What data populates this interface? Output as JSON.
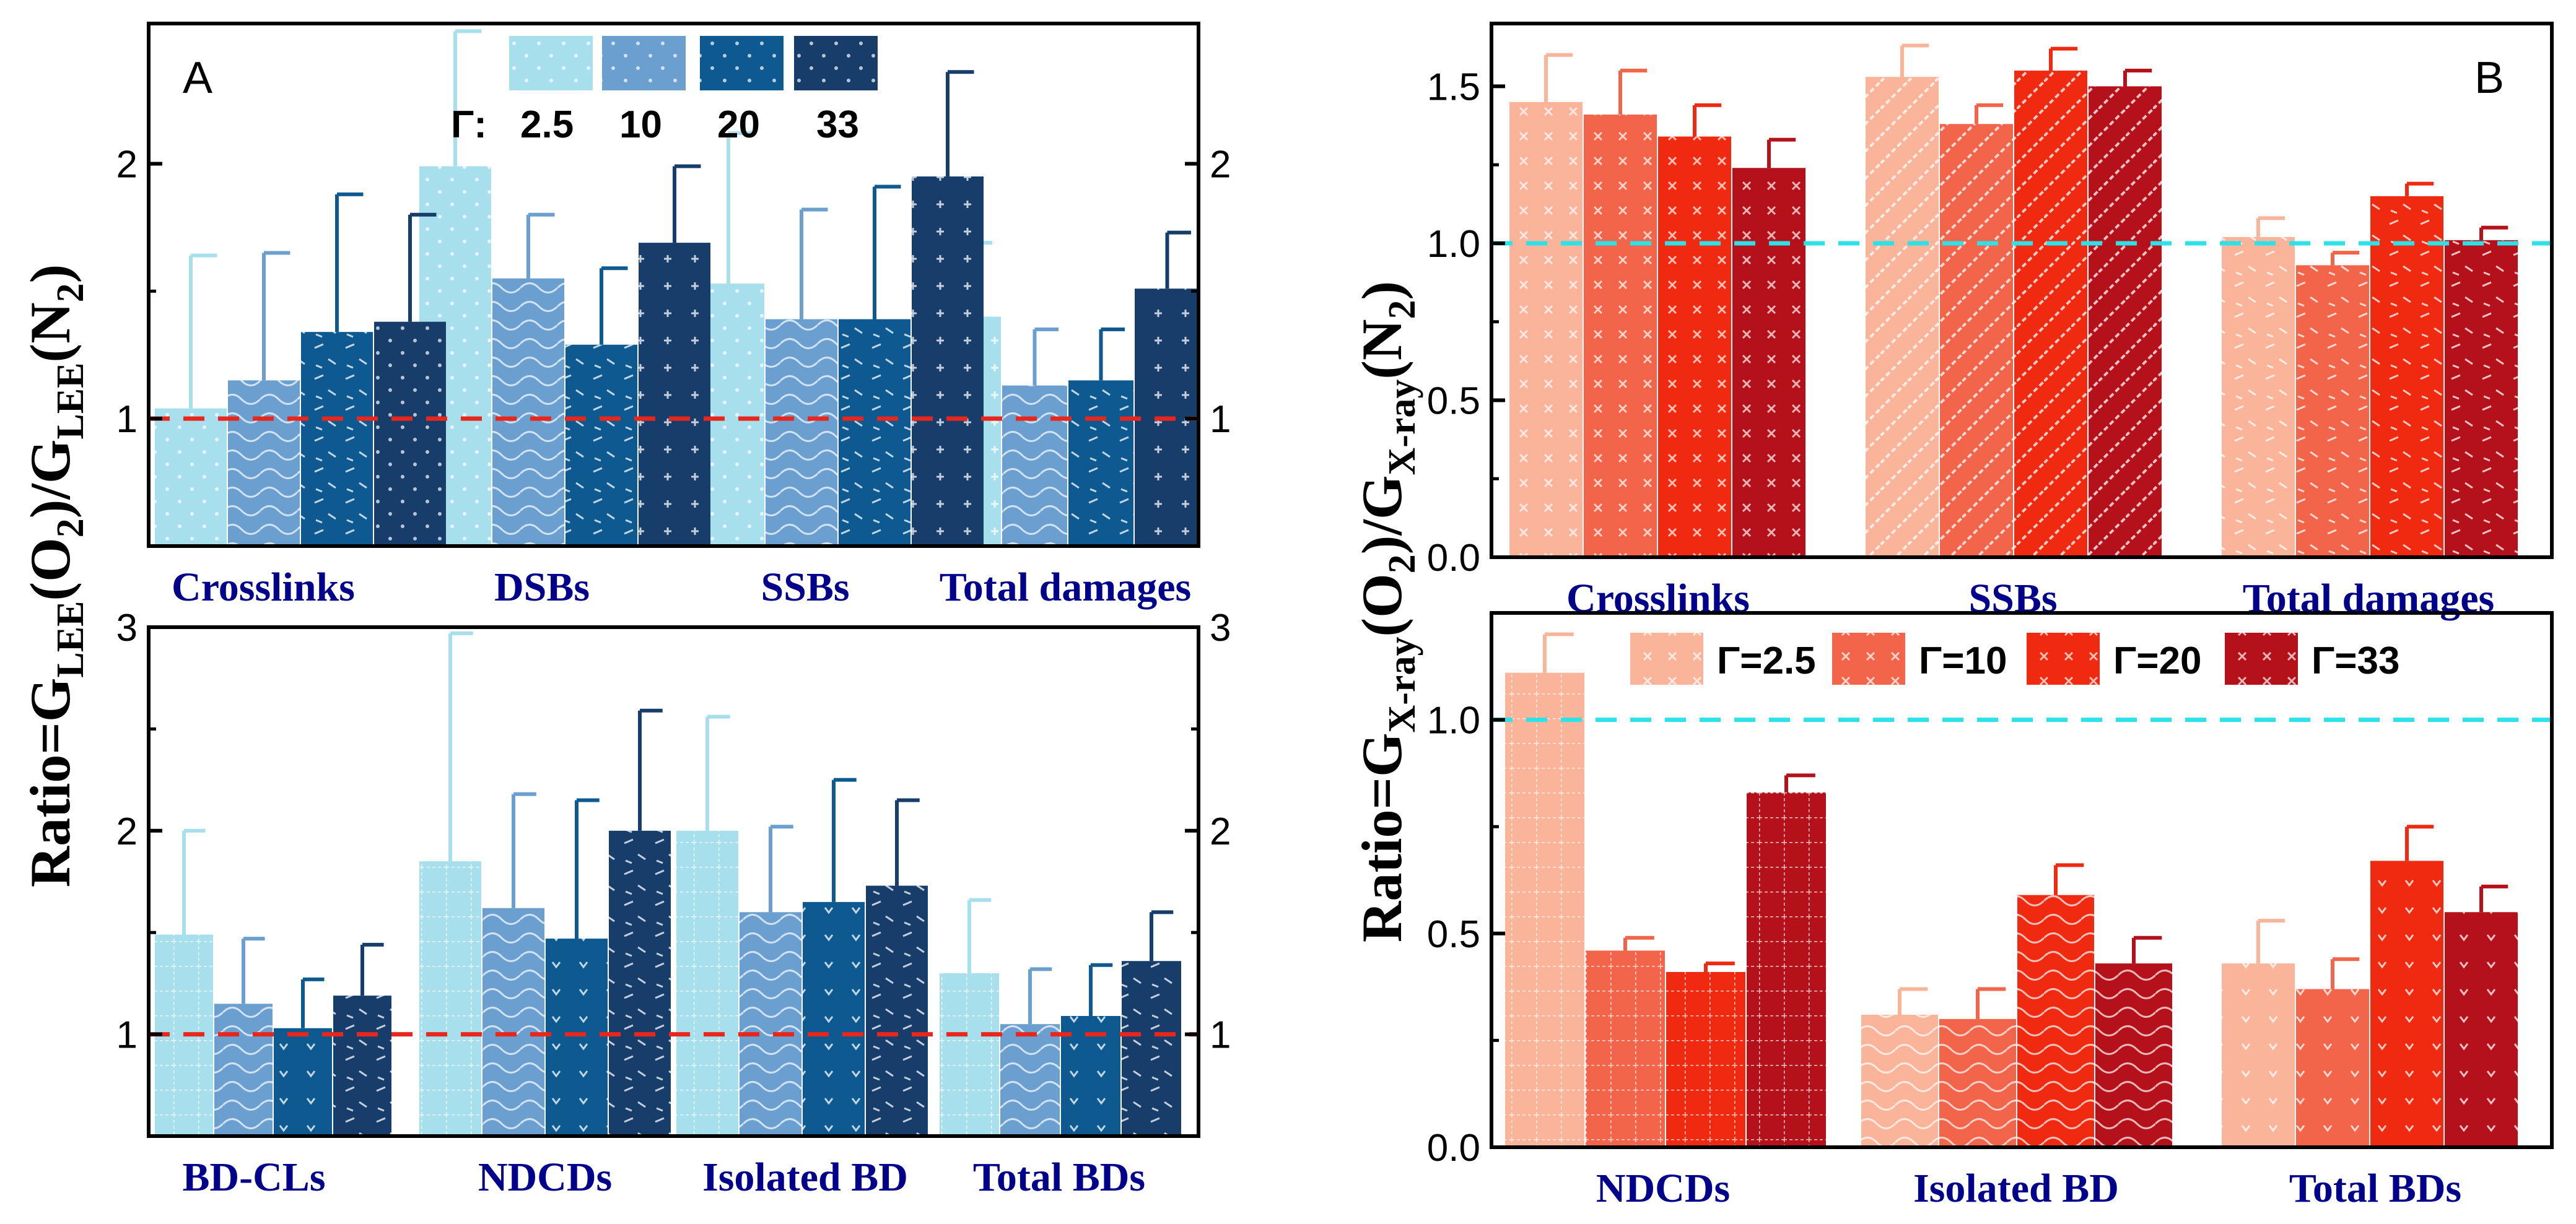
{
  "chart_data": [
    {
      "id": "A-top",
      "type": "bar",
      "panel_label": "A",
      "categories": [
        "Crosslinks",
        "DSBs",
        "SSBs",
        "Total damages"
      ],
      "series": [
        {
          "name": "2.5",
          "values": [
            1.04,
            1.99,
            1.53,
            1.4
          ],
          "errors": [
            0.6,
            0.53,
            0.59,
            0.29
          ]
        },
        {
          "name": "10",
          "values": [
            1.15,
            1.55,
            1.39,
            1.13
          ],
          "errors": [
            0.5,
            0.25,
            0.43,
            0.22
          ]
        },
        {
          "name": "20",
          "values": [
            1.34,
            1.29,
            1.39,
            1.15
          ],
          "errors": [
            0.54,
            0.3,
            0.52,
            0.2
          ]
        },
        {
          "name": "33",
          "values": [
            1.38,
            1.69,
            1.95,
            1.51
          ],
          "errors": [
            0.42,
            0.3,
            0.41,
            0.22
          ]
        }
      ],
      "reference_line": 1,
      "ylim": [
        0.5,
        2.55
      ],
      "yticks": [
        "1",
        "2"
      ],
      "legend": {
        "prefix": "Γ:",
        "labels": [
          "2.5",
          "10",
          "20",
          "33"
        ]
      }
    },
    {
      "id": "A-bottom",
      "type": "bar",
      "categories": [
        "BD-CLs",
        "NDCDs",
        "Isolated BD",
        "Total BDs"
      ],
      "series": [
        {
          "name": "2.5",
          "values": [
            1.49,
            1.85,
            2.0,
            1.3
          ],
          "errors": [
            0.51,
            1.12,
            0.56,
            0.36
          ]
        },
        {
          "name": "10",
          "values": [
            1.15,
            1.62,
            1.6,
            1.05
          ],
          "errors": [
            0.32,
            0.56,
            0.42,
            0.27
          ]
        },
        {
          "name": "20",
          "values": [
            1.03,
            1.47,
            1.65,
            1.09
          ],
          "errors": [
            0.24,
            0.68,
            0.6,
            0.25
          ]
        },
        {
          "name": "33",
          "values": [
            1.19,
            2.0,
            1.73,
            1.36
          ],
          "errors": [
            0.25,
            0.59,
            0.42,
            0.24
          ]
        }
      ],
      "reference_line": 1,
      "ylim": [
        0.5,
        3.0
      ],
      "yticks": [
        "1",
        "2",
        "3"
      ]
    },
    {
      "id": "B-top",
      "type": "bar",
      "panel_label": "B",
      "categories": [
        "Crosslinks",
        "SSBs",
        "Total damages"
      ],
      "series": [
        {
          "name": "Γ=2.5",
          "values": [
            1.45,
            1.53,
            1.02
          ],
          "errors": [
            0.15,
            0.1,
            0.06
          ]
        },
        {
          "name": "Γ=10",
          "values": [
            1.41,
            1.38,
            0.93
          ],
          "errors": [
            0.14,
            0.06,
            0.04
          ]
        },
        {
          "name": "Γ=20",
          "values": [
            1.34,
            1.55,
            1.15
          ],
          "errors": [
            0.1,
            0.07,
            0.04
          ]
        },
        {
          "name": "Γ=33",
          "values": [
            1.24,
            1.5,
            1.01
          ],
          "errors": [
            0.09,
            0.05,
            0.04
          ]
        }
      ],
      "reference_line": 1,
      "ylim": [
        0,
        1.7
      ],
      "yticks": [
        "0.0",
        "0.5",
        "1.0",
        "1.5"
      ]
    },
    {
      "id": "B-bottom",
      "type": "bar",
      "categories": [
        "NDCDs",
        "Isolated BD",
        "Total BDs"
      ],
      "series": [
        {
          "name": "Γ=2.5",
          "values": [
            1.11,
            0.31,
            0.43
          ],
          "errors": [
            0.09,
            0.06,
            0.1
          ]
        },
        {
          "name": "Γ=10",
          "values": [
            0.46,
            0.3,
            0.37
          ],
          "errors": [
            0.03,
            0.07,
            0.07
          ]
        },
        {
          "name": "Γ=20",
          "values": [
            0.41,
            0.59,
            0.67
          ],
          "errors": [
            0.02,
            0.07,
            0.08
          ]
        },
        {
          "name": "Γ=33",
          "values": [
            0.83,
            0.43,
            0.55
          ],
          "errors": [
            0.04,
            0.06,
            0.06
          ]
        }
      ],
      "reference_line": 1,
      "ylim": [
        0,
        1.25
      ],
      "yticks": [
        "0.0",
        "0.5",
        "1.0"
      ],
      "legend": {
        "labels": [
          "Γ=2.5",
          "Γ=10",
          "Γ=20",
          "Γ=33"
        ]
      }
    }
  ],
  "ylabel_A": {
    "prefix": "Ratio=G",
    "sub1": "LEE",
    "mid": "(O",
    "sub2": "2",
    "mid2": ")/G",
    "sub3": "LEE",
    "mid3": "(N",
    "sub4": "2",
    "end": ")"
  },
  "ylabel_B": {
    "prefix": "Ratio=G",
    "sub1": "X-ray",
    "mid": "(O",
    "sub2": "2",
    "mid2": ")/G",
    "sub3": "X-ray",
    "mid3": "(N",
    "sub4": "2",
    "end": ")"
  },
  "colors": {
    "blue": [
      "#a7dfec",
      "#6a9fcf",
      "#0e5a90",
      "#173d6b"
    ],
    "red": [
      "#f9b49a",
      "#f2654a",
      "#f02a10",
      "#b5111a"
    ],
    "refA": "#e8261c",
    "refB": "#2ce1e8",
    "error_blue": [
      "#a7dfec",
      "#6a9fcf",
      "#0e5a90",
      "#173d6b"
    ],
    "error_red": [
      "#f9b49a",
      "#f2654a",
      "#f02a10",
      "#b5111a"
    ]
  }
}
